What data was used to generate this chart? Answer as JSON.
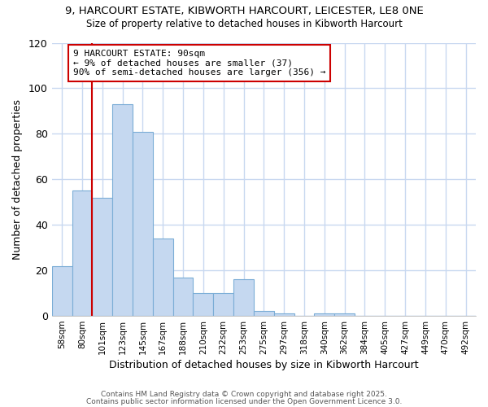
{
  "title_line1": "9, HARCOURT ESTATE, KIBWORTH HARCOURT, LEICESTER, LE8 0NE",
  "title_line2": "Size of property relative to detached houses in Kibworth Harcourt",
  "xlabel": "Distribution of detached houses by size in Kibworth Harcourt",
  "ylabel": "Number of detached properties",
  "categories": [
    "58sqm",
    "80sqm",
    "101sqm",
    "123sqm",
    "145sqm",
    "167sqm",
    "188sqm",
    "210sqm",
    "232sqm",
    "253sqm",
    "275sqm",
    "297sqm",
    "318sqm",
    "340sqm",
    "362sqm",
    "384sqm",
    "405sqm",
    "427sqm",
    "449sqm",
    "470sqm",
    "492sqm"
  ],
  "values": [
    22,
    55,
    52,
    93,
    81,
    34,
    17,
    10,
    10,
    16,
    2,
    1,
    0,
    1,
    1,
    0,
    0,
    0,
    0,
    0,
    0
  ],
  "bar_color": "#C5D8F0",
  "bar_edge_color": "#7BADD6",
  "marker_label_line1": "9 HARCOURT ESTATE: 90sqm",
  "marker_label_line2": "← 9% of detached houses are smaller (37)",
  "marker_label_line3": "90% of semi-detached houses are larger (356) →",
  "marker_color": "#CC0000",
  "ylim": [
    0,
    120
  ],
  "yticks": [
    0,
    20,
    40,
    60,
    80,
    100,
    120
  ],
  "footer_line1": "Contains HM Land Registry data © Crown copyright and database right 2025.",
  "footer_line2": "Contains public sector information licensed under the Open Government Licence 3.0.",
  "bg_color": "#FFFFFF",
  "grid_color": "#C8D8F0",
  "annotation_bg_color": "#FFFFFF",
  "annotation_edge_color": "#CC0000"
}
